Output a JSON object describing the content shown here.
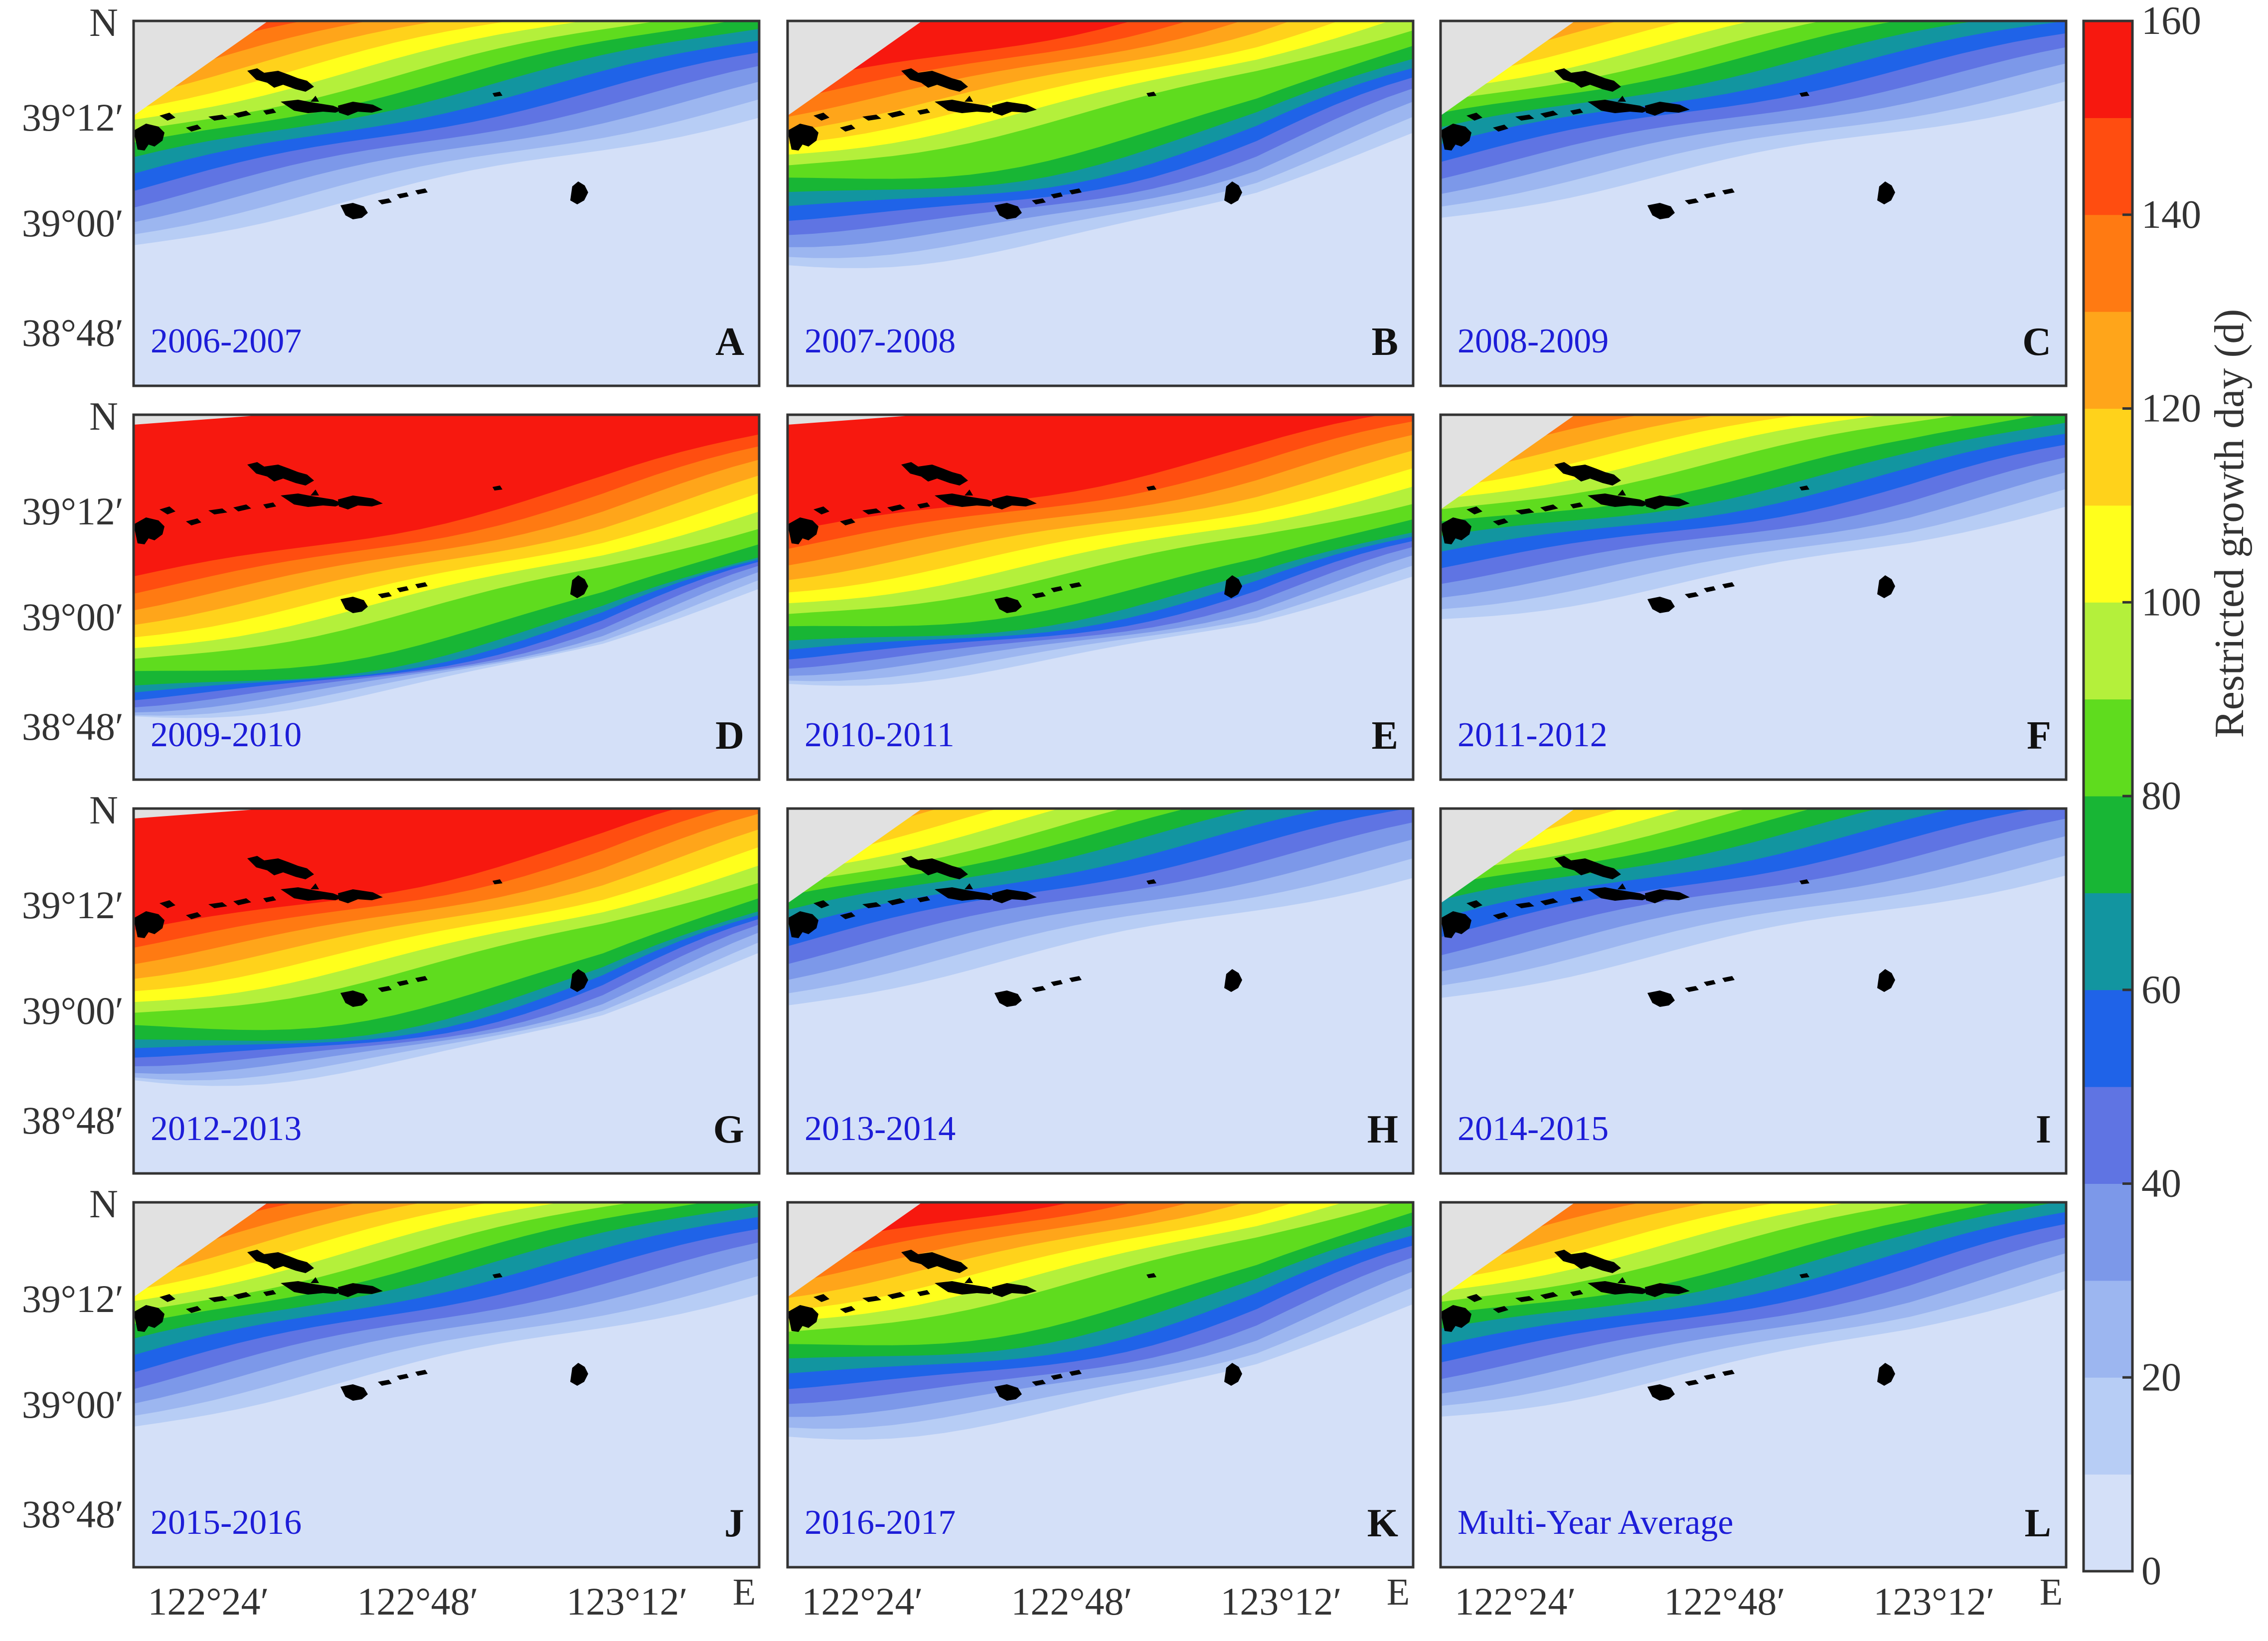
{
  "figure": {
    "panels": [
      {
        "id": "A",
        "year": "2006-2007"
      },
      {
        "id": "B",
        "year": "2007-2008"
      },
      {
        "id": "C",
        "year": "2008-2009"
      },
      {
        "id": "D",
        "year": "2009-2010"
      },
      {
        "id": "E",
        "year": "2010-2011"
      },
      {
        "id": "F",
        "year": "2011-2012"
      },
      {
        "id": "G",
        "year": "2012-2013"
      },
      {
        "id": "H",
        "year": "2013-2014"
      },
      {
        "id": "I",
        "year": "2014-2015"
      },
      {
        "id": "J",
        "year": "2015-2016"
      },
      {
        "id": "K",
        "year": "2016-2017"
      },
      {
        "id": "L",
        "year": "Multi-Year Average"
      }
    ],
    "lat_ticks": [
      "39°12′",
      "39°00′",
      "38°48′"
    ],
    "lon_ticks": [
      "122°24′",
      "122°48′",
      "123°12′"
    ],
    "north_label": "N",
    "east_label": "E",
    "colorbar": {
      "label": "Restricted growth day (d)",
      "ticks": [
        "0",
        "20",
        "40",
        "60",
        "80",
        "100",
        "120",
        "140",
        "160"
      ],
      "min": 0,
      "max": 160,
      "step": 10,
      "colors": [
        "#d4e0f8",
        "#b7cdf5",
        "#9cb6f0",
        "#7c98e9",
        "#5f74e3",
        "#1f63e8",
        "#1295a0",
        "#18b635",
        "#5fdc1e",
        "#b4f03b",
        "#ffff1c",
        "#ffd21b",
        "#ffa51a",
        "#ff7a12",
        "#ff4d10",
        "#f7180f"
      ]
    },
    "colors": {
      "year_label": "#1d1dd8",
      "land": "#000000",
      "no_data": "#e1e1e1"
    }
  }
}
